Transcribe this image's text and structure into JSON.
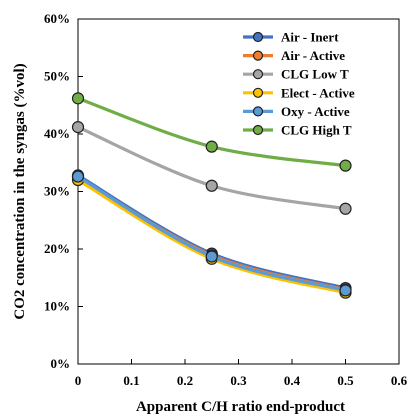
{
  "chart_data": {
    "type": "line",
    "xlabel": "Apparent C/H ratio end-product",
    "ylabel": "CO2 concentration in the syngas (%vol)",
    "xlim": [
      0,
      0.6
    ],
    "ylim": [
      0,
      60
    ],
    "x_ticks": [
      "0",
      "0.1",
      "0.2",
      "0.3",
      "0.4",
      "0.5",
      "0.6"
    ],
    "y_ticks": [
      "0%",
      "10%",
      "20%",
      "30%",
      "40%",
      "50%",
      "60%"
    ],
    "grid": false,
    "legend_position": "top-right",
    "series": [
      {
        "name": "Air - Inert",
        "color": "#4472C4",
        "x": [
          0,
          0.25,
          0.5
        ],
        "y": [
          32.8,
          19.2,
          13.2
        ]
      },
      {
        "name": "Air - Active",
        "color": "#ED7D31",
        "x": [
          0,
          0.25,
          0.5
        ],
        "y": [
          32.5,
          18.9,
          12.9
        ]
      },
      {
        "name": "CLG Low T",
        "color": "#A5A5A5",
        "x": [
          0,
          0.25,
          0.5
        ],
        "y": [
          41.2,
          31.0,
          27.0
        ]
      },
      {
        "name": "Elect - Active",
        "color": "#FFC000",
        "x": [
          0,
          0.25,
          0.5
        ],
        "y": [
          32.0,
          18.3,
          12.4
        ]
      },
      {
        "name": "Oxy - Active",
        "color": "#5B9BD5",
        "x": [
          0,
          0.25,
          0.5
        ],
        "y": [
          32.6,
          18.7,
          12.8
        ]
      },
      {
        "name": "CLG High T",
        "color": "#70AD47",
        "x": [
          0,
          0.25,
          0.5
        ],
        "y": [
          46.2,
          37.8,
          34.5
        ]
      }
    ]
  }
}
